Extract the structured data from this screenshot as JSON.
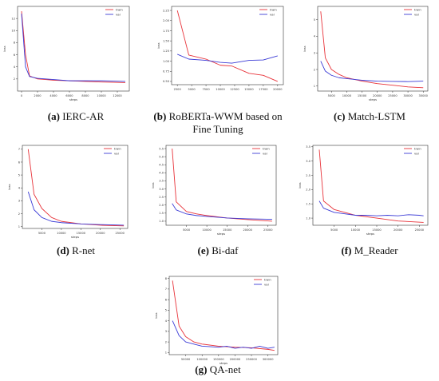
{
  "colors": {
    "train": "#e8333a",
    "val": "#3b3bd6",
    "axis": "#333333"
  },
  "charts": [
    {
      "caption_letter": "(a)",
      "caption_text": " IERC-AR",
      "chart_data": {
        "type": "line",
        "xlabel": "steps",
        "ylabel": "loss",
        "xlim": [
          -500,
          13500
        ],
        "ylim": [
          0,
          14
        ],
        "xticks": [
          0,
          2000,
          4000,
          6000,
          8000,
          10000,
          12000
        ],
        "xtick_labels": [
          "0",
          "2000",
          "4000",
          "6000",
          "8000",
          "10000",
          "12000"
        ],
        "yticks": [
          2,
          4,
          6,
          8,
          10,
          12
        ],
        "ytick_labels": [
          "2",
          "4",
          "6",
          "8",
          "10",
          "12"
        ],
        "legend": "top-right",
        "series": [
          {
            "name": "train",
            "x": [
              0,
              500,
              1000,
              2000,
              3000,
              4000,
              6000,
              8000,
              10000,
              13000
            ],
            "y": [
              13.2,
              6.0,
              2.5,
              2.0,
              1.9,
              1.8,
              1.7,
              1.6,
              1.5,
              1.4
            ]
          },
          {
            "name": "val",
            "x": [
              0,
              500,
              1000,
              2000,
              3000,
              4000,
              6000,
              8000,
              10000,
              13000
            ],
            "y": [
              12.8,
              4.0,
              2.4,
              2.1,
              2.0,
              1.9,
              1.7,
              1.7,
              1.7,
              1.6
            ]
          }
        ]
      }
    },
    {
      "caption_letter": "(b)",
      "caption_text": " RoBERTa-WWM based on",
      "caption_line2": "Fine Tuning",
      "chart_data": {
        "type": "line",
        "xlabel": "",
        "ylabel": "loss",
        "xlim": [
          1500,
          21000
        ],
        "ylim": [
          0.42,
          2.35
        ],
        "xticks": [
          2500,
          5000,
          7500,
          10000,
          12500,
          15000,
          17500,
          20000
        ],
        "xtick_labels": [
          "2500",
          "5000",
          "7500",
          "10000",
          "12500",
          "15000",
          "17500",
          "20000"
        ],
        "yticks": [
          0.5,
          0.75,
          1.0,
          1.25,
          1.5,
          1.75,
          2.0,
          2.25
        ],
        "ytick_labels": [
          "0.50",
          "0.75",
          "1.00",
          "1.25",
          "1.50",
          "1.75",
          "2.00",
          "2.25"
        ],
        "legend": "top-right",
        "series": [
          {
            "name": "train",
            "x": [
              2500,
              4500,
              7500,
              10000,
              12000,
              15000,
              17500,
              20000
            ],
            "y": [
              2.25,
              1.15,
              1.05,
              0.9,
              0.88,
              0.7,
              0.65,
              0.5
            ]
          },
          {
            "name": "val",
            "x": [
              2500,
              4500,
              7500,
              10000,
              12000,
              15000,
              17500,
              20000
            ],
            "y": [
              1.17,
              1.05,
              1.02,
              0.97,
              0.95,
              1.02,
              1.03,
              1.13
            ]
          }
        ]
      }
    },
    {
      "caption_letter": "(c)",
      "caption_text": " Match-LSTM",
      "chart_data": {
        "type": "line",
        "xlabel": "steps",
        "ylabel": "loss",
        "xlim": [
          500,
          36500
        ],
        "ylim": [
          0.7,
          5.8
        ],
        "xticks": [
          5000,
          10000,
          15000,
          20000,
          25000,
          30000,
          35000
        ],
        "xtick_labels": [
          "5000",
          "10000",
          "15000",
          "20000",
          "25000",
          "30000",
          "35000"
        ],
        "yticks": [
          1,
          2,
          3,
          4,
          5
        ],
        "ytick_labels": [
          "1",
          "2",
          "3",
          "4",
          "5"
        ],
        "legend": "top-right",
        "series": [
          {
            "name": "train",
            "x": [
              1500,
              3000,
              5000,
              7500,
              10000,
              15000,
              20000,
              25000,
              30000,
              35000
            ],
            "y": [
              5.5,
              2.7,
              2.0,
              1.7,
              1.5,
              1.3,
              1.15,
              1.05,
              0.95,
              0.9
            ]
          },
          {
            "name": "val",
            "x": [
              1500,
              3000,
              5000,
              7500,
              10000,
              15000,
              20000,
              25000,
              30000,
              35000
            ],
            "y": [
              2.5,
              1.9,
              1.65,
              1.5,
              1.45,
              1.35,
              1.3,
              1.28,
              1.27,
              1.3
            ]
          }
        ]
      }
    },
    {
      "caption_letter": "(d)",
      "caption_text": " R-net",
      "chart_data": {
        "type": "line",
        "xlabel": "steps",
        "ylabel": "loss",
        "xlim": [
          0,
          27000
        ],
        "ylim": [
          0.85,
          7.3
        ],
        "xticks": [
          5000,
          10000,
          15000,
          20000,
          25000
        ],
        "xtick_labels": [
          "5000",
          "10000",
          "15000",
          "20000",
          "25000"
        ],
        "yticks": [
          1,
          2,
          3,
          4,
          5,
          6,
          7
        ],
        "ytick_labels": [
          "1",
          "2",
          "3",
          "4",
          "5",
          "6",
          "7"
        ],
        "legend": "top-right",
        "series": [
          {
            "name": "train",
            "x": [
              1500,
              3000,
              5000,
              7500,
              10000,
              15000,
              20000,
              26000
            ],
            "y": [
              7.0,
              3.5,
              2.4,
              1.7,
              1.4,
              1.2,
              1.1,
              1.05
            ]
          },
          {
            "name": "val",
            "x": [
              1500,
              3000,
              5000,
              7500,
              10000,
              15000,
              20000,
              26000
            ],
            "y": [
              3.7,
              2.3,
              1.7,
              1.4,
              1.3,
              1.2,
              1.15,
              1.1
            ]
          }
        ]
      }
    },
    {
      "caption_letter": "(e)",
      "caption_text": " Bi-daf",
      "chart_data": {
        "type": "line",
        "xlabel": "steps",
        "ylabel": "loss",
        "xlim": [
          0,
          27000
        ],
        "ylim": [
          0.75,
          5.7
        ],
        "xticks": [
          5000,
          10000,
          15000,
          20000,
          25000
        ],
        "xtick_labels": [
          "5000",
          "10000",
          "15000",
          "20000",
          "25000"
        ],
        "yticks": [
          1.0,
          1.5,
          2.0,
          2.5,
          3.0,
          3.5,
          4.0,
          4.5,
          5.0,
          5.5
        ],
        "ytick_labels": [
          "1.0",
          "1.5",
          "2.0",
          "2.5",
          "3.0",
          "3.5",
          "4.0",
          "4.5",
          "5.0",
          "5.5"
        ],
        "legend": "top-right",
        "series": [
          {
            "name": "train",
            "x": [
              1500,
              2500,
              5000,
              7500,
              10000,
              15000,
              20000,
              26000
            ],
            "y": [
              5.5,
              2.2,
              1.6,
              1.45,
              1.35,
              1.2,
              1.1,
              1.0
            ]
          },
          {
            "name": "val",
            "x": [
              1500,
              2500,
              5000,
              7500,
              10000,
              15000,
              20000,
              26000
            ],
            "y": [
              2.1,
              1.7,
              1.45,
              1.35,
              1.3,
              1.2,
              1.15,
              1.12
            ]
          }
        ]
      }
    },
    {
      "caption_letter": "(f)",
      "caption_text": " M_Reader",
      "chart_data": {
        "type": "line",
        "xlabel": "steps",
        "ylabel": "loss",
        "xlim": [
          0,
          27000
        ],
        "ylim": [
          0.75,
          3.55
        ],
        "xticks": [
          5000,
          10000,
          15000,
          20000,
          25000
        ],
        "xtick_labels": [
          "5000",
          "10000",
          "15000",
          "20000",
          "25000"
        ],
        "yticks": [
          1.0,
          1.5,
          2.0,
          2.5,
          3.0,
          3.5
        ],
        "ytick_labels": [
          "1.0",
          "1.5",
          "2.0",
          "2.5",
          "3.0",
          "3.5"
        ],
        "legend": "top-right",
        "series": [
          {
            "name": "train",
            "x": [
              1500,
              2500,
              5000,
              7500,
              10000,
              15000,
              20000,
              26000
            ],
            "y": [
              3.4,
              1.6,
              1.3,
              1.2,
              1.1,
              1.0,
              0.9,
              0.85
            ]
          },
          {
            "name": "val",
            "x": [
              1500,
              2500,
              5000,
              7500,
              10000,
              12500,
              15000,
              17500,
              20000,
              22500,
              25000,
              26000
            ],
            "y": [
              1.6,
              1.35,
              1.2,
              1.15,
              1.1,
              1.1,
              1.08,
              1.1,
              1.08,
              1.12,
              1.1,
              1.08
            ]
          }
        ]
      }
    },
    {
      "caption_letter": "(g)",
      "caption_text": " QA-net",
      "chart_data": {
        "type": "line",
        "xlabel": "steps",
        "ylabel": "loss",
        "xlim": [
          0,
          330000
        ],
        "ylim": [
          0.8,
          8.2
        ],
        "xticks": [
          50000,
          100000,
          150000,
          200000,
          250000,
          300000
        ],
        "xtick_labels": [
          "50000",
          "100000",
          "150000",
          "200000",
          "250000",
          "300000"
        ],
        "yticks": [
          1,
          2,
          3,
          4,
          5,
          6,
          7,
          8
        ],
        "ytick_labels": [
          "1",
          "2",
          "3",
          "4",
          "5",
          "6",
          "7",
          "8"
        ],
        "legend": "top-right",
        "series": [
          {
            "name": "train",
            "x": [
              10000,
              30000,
              50000,
              75000,
              100000,
              150000,
              200000,
              250000,
              300000,
              320000
            ],
            "y": [
              7.8,
              3.5,
              2.5,
              2.0,
              1.8,
              1.6,
              1.5,
              1.45,
              1.3,
              1.2
            ]
          },
          {
            "name": "val",
            "x": [
              10000,
              30000,
              50000,
              75000,
              100000,
              150000,
              175000,
              200000,
              225000,
              250000,
              275000,
              300000,
              320000
            ],
            "y": [
              4.0,
              2.6,
              2.0,
              1.8,
              1.6,
              1.5,
              1.6,
              1.4,
              1.5,
              1.4,
              1.6,
              1.4,
              1.5
            ]
          }
        ]
      }
    }
  ]
}
